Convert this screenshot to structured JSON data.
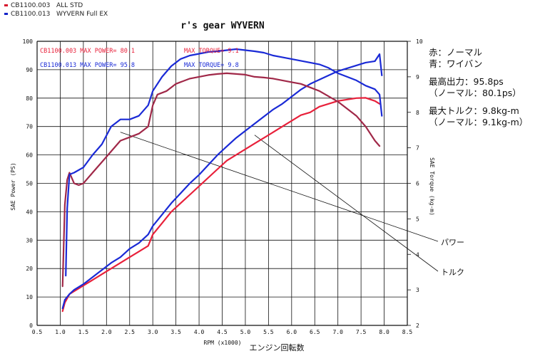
{
  "legend_top": [
    {
      "id": "CB1100.003",
      "label": "ALL STD",
      "color": "#d8142c"
    },
    {
      "id": "CB1100.013",
      "label": "WYVERN Full EX",
      "color": "#1424c8"
    }
  ],
  "notes": {
    "red_label": "赤：ノーマル",
    "blue_label": "青：ワイバン",
    "max_power_title": "最高出力：95.8ps",
    "max_power_normal": "（ノーマル：80.1ps）",
    "max_torque_title": "最大トルク：9.8kg-m",
    "max_torque_normal": "（ノーマル：9.1kg-m）"
  },
  "chart_data": {
    "type": "line",
    "title": "r's gear WYVERN",
    "xlabel": "RPM (x1000)",
    "xlabel_jp": "エンジン回転数",
    "ylabel_left": "SAE Power (PS)",
    "ylabel_right": "SAE Torque (kg-m)",
    "xlim": [
      0.5,
      8.5
    ],
    "ylim_left": [
      0,
      100
    ],
    "ylim_right": [
      2,
      10
    ],
    "x_ticks": [
      "0.5",
      "1.0",
      "1.5",
      "2.0",
      "2.5",
      "3.0",
      "3.5",
      "4.0",
      "4.5",
      "5.0",
      "5.5",
      "6.0",
      "6.5",
      "7.0",
      "7.5",
      "8.0",
      "8.5"
    ],
    "y_left_ticks": [
      "0",
      "10",
      "20",
      "30",
      "40",
      "50",
      "60",
      "70",
      "80",
      "90",
      "100"
    ],
    "y_right_ticks": [
      "2",
      "3",
      "4",
      "5",
      "6",
      "7",
      "8",
      "9",
      "10"
    ],
    "grid": true,
    "annotations": {
      "std_power": "CB1100.003  MAX POWER= 80.1",
      "std_torque": "MAX TORQUE= 9.1",
      "wyv_power": "CB1100.013  MAX POWER= 95.8",
      "wyv_torque": "MAX TORQUE= 9.8",
      "power_callout": "パワー",
      "torque_callout": "トルク"
    },
    "series": [
      {
        "name": "CB1100.003 ALL STD",
        "kind": "power",
        "color": "#e8203a",
        "x": [
          1.05,
          1.1,
          1.2,
          1.3,
          1.5,
          1.7,
          1.9,
          2.1,
          2.3,
          2.5,
          2.7,
          2.9,
          3.0,
          3.2,
          3.4,
          3.6,
          3.8,
          4.0,
          4.2,
          4.4,
          4.6,
          4.8,
          5.0,
          5.2,
          5.4,
          5.6,
          5.8,
          6.0,
          6.2,
          6.4,
          6.6,
          6.8,
          7.0,
          7.2,
          7.4,
          7.6,
          7.8,
          7.9
        ],
        "y": [
          5,
          8,
          11,
          12,
          14,
          16,
          18,
          20,
          22,
          24,
          26,
          28,
          32,
          36,
          40,
          43,
          46,
          49,
          52,
          55,
          58,
          60,
          62,
          64,
          66,
          68,
          70,
          72,
          74,
          75,
          77,
          78,
          79,
          79.5,
          80,
          80.1,
          79,
          78
        ]
      },
      {
        "name": "CB1100.013 WYVERN Full EX",
        "kind": "power",
        "color": "#1a2ad6",
        "x": [
          1.05,
          1.1,
          1.2,
          1.3,
          1.5,
          1.7,
          1.9,
          2.1,
          2.3,
          2.5,
          2.7,
          2.9,
          3.0,
          3.2,
          3.4,
          3.6,
          3.8,
          4.0,
          4.2,
          4.4,
          4.6,
          4.8,
          5.0,
          5.2,
          5.4,
          5.6,
          5.8,
          6.0,
          6.2,
          6.4,
          6.6,
          6.8,
          7.0,
          7.2,
          7.4,
          7.6,
          7.8,
          7.9,
          7.95
        ],
        "y": [
          6,
          9,
          11,
          12.5,
          14.5,
          17,
          19.5,
          22,
          24,
          27,
          29,
          32,
          35,
          39,
          43,
          46.5,
          50,
          53,
          56.5,
          60,
          63,
          66,
          68.5,
          71,
          73.5,
          76,
          78,
          80.5,
          83,
          85,
          86.5,
          88,
          89.5,
          90.5,
          91.5,
          92.5,
          93,
          95.5,
          88
        ]
      },
      {
        "name": "CB1100.003 ALL STD",
        "kind": "torque",
        "color": "#a02848",
        "x": [
          1.05,
          1.1,
          1.15,
          1.2,
          1.3,
          1.4,
          1.5,
          1.7,
          1.9,
          2.1,
          2.3,
          2.5,
          2.7,
          2.9,
          3.0,
          3.1,
          3.3,
          3.5,
          3.8,
          4.0,
          4.2,
          4.4,
          4.6,
          4.8,
          5.0,
          5.2,
          5.4,
          5.6,
          5.8,
          6.0,
          6.2,
          6.4,
          6.6,
          6.8,
          7.0,
          7.2,
          7.4,
          7.6,
          7.8,
          7.9
        ],
        "y": [
          3.1,
          5.4,
          6.1,
          6.3,
          6.0,
          5.95,
          6.0,
          6.3,
          6.6,
          6.9,
          7.2,
          7.3,
          7.4,
          7.6,
          8.2,
          8.5,
          8.6,
          8.8,
          8.95,
          9.0,
          9.05,
          9.08,
          9.1,
          9.08,
          9.06,
          9.0,
          8.98,
          8.95,
          8.9,
          8.85,
          8.8,
          8.7,
          8.6,
          8.45,
          8.3,
          8.1,
          7.9,
          7.6,
          7.2,
          7.05
        ]
      },
      {
        "name": "CB1100.013 WYVERN Full EX",
        "kind": "torque",
        "color": "#1a2ad6",
        "x": [
          1.12,
          1.15,
          1.2,
          1.3,
          1.5,
          1.7,
          1.9,
          2.1,
          2.3,
          2.5,
          2.7,
          2.9,
          3.0,
          3.2,
          3.4,
          3.6,
          3.8,
          4.0,
          4.2,
          4.4,
          4.6,
          4.8,
          5.0,
          5.2,
          5.4,
          5.6,
          5.8,
          6.0,
          6.2,
          6.4,
          6.6,
          6.8,
          7.0,
          7.2,
          7.4,
          7.6,
          7.8,
          7.9,
          7.95
        ],
        "y": [
          3.4,
          5.3,
          6.25,
          6.3,
          6.45,
          6.8,
          7.1,
          7.6,
          7.8,
          7.8,
          7.9,
          8.2,
          8.6,
          9.0,
          9.3,
          9.5,
          9.6,
          9.65,
          9.7,
          9.72,
          9.75,
          9.78,
          9.75,
          9.72,
          9.68,
          9.6,
          9.55,
          9.5,
          9.45,
          9.4,
          9.35,
          9.25,
          9.1,
          9.0,
          8.9,
          8.75,
          8.65,
          8.5,
          7.9
        ]
      }
    ]
  }
}
